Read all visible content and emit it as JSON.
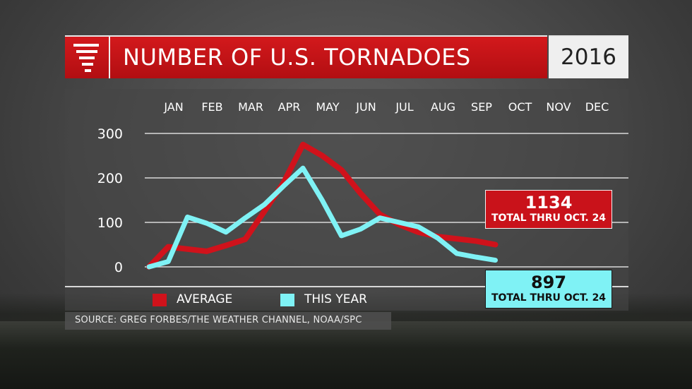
{
  "header": {
    "title": "NUMBER OF U.S. TORNADOES",
    "year": "2016",
    "logo_icon": "tornado-icon"
  },
  "colors": {
    "average": "#d0121b",
    "this_year": "#7ff2f5",
    "title_bar": "#c8141a"
  },
  "chart_data": {
    "type": "line",
    "title": "NUMBER OF U.S. TORNADOES",
    "categories": [
      "JAN",
      "FEB",
      "MAR",
      "APR",
      "MAY",
      "JUN",
      "JUL",
      "AUG",
      "SEP",
      "OCT",
      "NOV",
      "DEC"
    ],
    "y_ticks": [
      "0",
      "100",
      "200",
      "300"
    ],
    "ylim": [
      0,
      300
    ],
    "grid": true,
    "legend_placement": "bottom-left",
    "series": [
      {
        "name": "AVERAGE",
        "x": [
          0,
          0.5,
          1,
          1.5,
          2,
          2.5,
          3,
          3.5,
          4,
          4.5,
          5,
          5.5,
          6,
          6.5,
          7,
          7.5,
          8,
          8.5,
          9
        ],
        "y": [
          0,
          45,
          40,
          35,
          48,
          62,
          125,
          190,
          275,
          250,
          218,
          165,
          118,
          95,
          78,
          68,
          63,
          58,
          50
        ]
      },
      {
        "name": "THIS YEAR",
        "x": [
          0,
          0.5,
          1,
          1.5,
          2,
          2.5,
          3,
          3.5,
          4,
          4.5,
          5,
          5.5,
          6,
          6.5,
          7,
          7.5,
          8,
          8.5,
          9
        ],
        "y": [
          0,
          12,
          112,
          98,
          78,
          110,
          140,
          182,
          222,
          150,
          70,
          85,
          110,
          100,
          90,
          65,
          30,
          22,
          15
        ]
      }
    ]
  },
  "legend": {
    "average_label": "AVERAGE",
    "this_year_label": "THIS YEAR"
  },
  "totals": {
    "average": {
      "value": "1134",
      "label": "TOTAL THRU OCT. 24"
    },
    "this_year": {
      "value": "897",
      "label": "TOTAL THRU OCT. 24"
    }
  },
  "source": "SOURCE: GREG FORBES/THE WEATHER CHANNEL, NOAA/SPC"
}
